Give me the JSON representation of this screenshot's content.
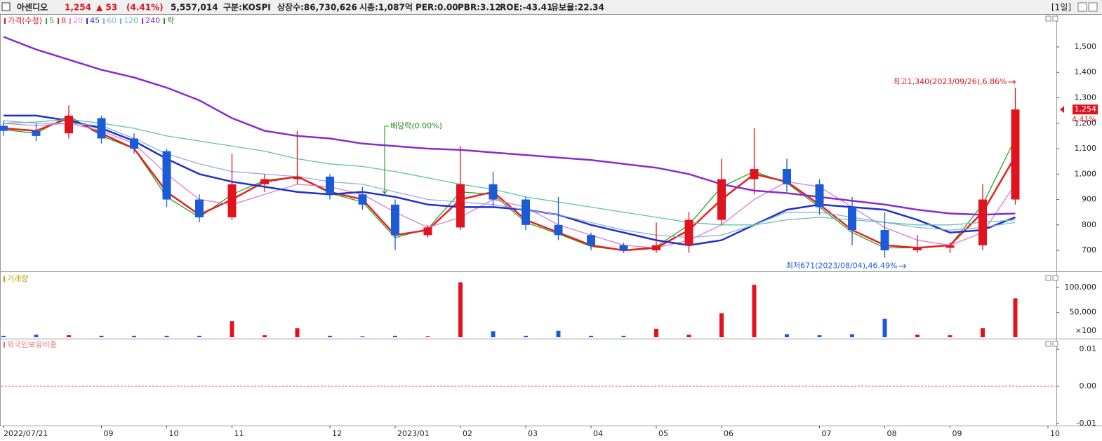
{
  "header": {
    "name": "아센디오",
    "price": "1,254",
    "change": "▲ 53",
    "change_pct": "(4.41%)",
    "volume": "5,557,014",
    "market": "구분:KOSPI",
    "shares": "상장수:86,730,626",
    "cap": "시총:1,087억",
    "per": "PER:0.00",
    "pbr": "PBR:3.12",
    "roe": "ROE:-43.41",
    "reserve": "유보율:22.34",
    "period": "[1일]"
  },
  "chart_data": [
    {
      "type": "candlestick",
      "legend_title": "가격(수정)",
      "legend_ex": "락",
      "categories": [
        "2022/07/21",
        null,
        null,
        "09",
        null,
        "10",
        null,
        "11",
        null,
        null,
        "12",
        null,
        "2023/01",
        null,
        "02",
        null,
        "03",
        null,
        "04",
        null,
        "05",
        null,
        "06",
        null,
        null,
        "07",
        null,
        "08",
        null,
        "09",
        null,
        null,
        "10"
      ],
      "open": [
        1190,
        1170,
        1160,
        1220,
        1140,
        1090,
        900,
        830,
        960,
        980,
        990,
        920,
        880,
        760,
        790,
        960,
        900,
        800,
        760,
        720,
        700,
        720,
        820,
        980,
        1020,
        960,
        870,
        780,
        700,
        710,
        720,
        900,
        null
      ],
      "high": [
        1210,
        1200,
        1270,
        1230,
        1160,
        1100,
        920,
        1080,
        1000,
        1170,
        1000,
        950,
        900,
        800,
        1110,
        1010,
        910,
        910,
        770,
        730,
        810,
        850,
        1060,
        1180,
        1060,
        980,
        910,
        850,
        760,
        730,
        960,
        1340,
        null
      ],
      "low": [
        1150,
        1130,
        1140,
        1120,
        1080,
        870,
        810,
        820,
        930,
        960,
        900,
        860,
        700,
        750,
        780,
        870,
        780,
        740,
        700,
        690,
        690,
        690,
        800,
        920,
        930,
        840,
        720,
        671,
        690,
        690,
        700,
        880,
        null
      ],
      "close": [
        1170,
        1150,
        1230,
        1140,
        1100,
        900,
        830,
        960,
        980,
        990,
        920,
        880,
        760,
        790,
        960,
        900,
        800,
        760,
        720,
        700,
        720,
        820,
        980,
        1020,
        960,
        870,
        780,
        700,
        710,
        720,
        900,
        1254,
        null
      ],
      "up_color": "#e0141e",
      "down_color": "#1c5bd6",
      "series": [
        {
          "name": "5",
          "color": "#22a822",
          "width": 1.3,
          "values": [
            1175,
            1160,
            1230,
            1150,
            1100,
            910,
            830,
            920,
            975,
            990,
            925,
            890,
            750,
            785,
            930,
            920,
            810,
            765,
            715,
            700,
            715,
            800,
            950,
            1010,
            965,
            870,
            770,
            710,
            710,
            720,
            880,
            1140,
            null
          ]
        },
        {
          "name": "8",
          "color": "#e8201e",
          "width": 2.5,
          "values": [
            1180,
            1170,
            1220,
            1160,
            1100,
            930,
            840,
            900,
            970,
            990,
            930,
            900,
            760,
            780,
            900,
            930,
            820,
            770,
            720,
            700,
            710,
            780,
            900,
            1000,
            970,
            880,
            780,
            720,
            710,
            720,
            850,
            1070,
            null
          ]
        },
        {
          "name": "20",
          "color": "#e07ad8",
          "width": 1.3,
          "values": [
            1200,
            1190,
            1200,
            1170,
            1120,
            1000,
            900,
            880,
            920,
            960,
            950,
            920,
            850,
            790,
            830,
            900,
            870,
            800,
            760,
            720,
            710,
            740,
            800,
            900,
            970,
            950,
            870,
            790,
            740,
            720,
            770,
            960,
            null
          ]
        },
        {
          "name": "45",
          "color": "#1f2fd0",
          "width": 2.5,
          "values": [
            1230,
            1230,
            1210,
            1180,
            1130,
            1060,
            1000,
            970,
            950,
            930,
            920,
            930,
            910,
            880,
            870,
            870,
            860,
            840,
            800,
            770,
            740,
            720,
            740,
            800,
            860,
            880,
            870,
            860,
            820,
            770,
            780,
            830,
            null
          ]
        },
        {
          "name": "60",
          "color": "#8fb0e0",
          "width": 1.3,
          "values": [
            1210,
            1200,
            1200,
            1190,
            1140,
            1080,
            1040,
            1010,
            1000,
            990,
            970,
            960,
            930,
            900,
            890,
            880,
            860,
            840,
            810,
            780,
            760,
            750,
            760,
            800,
            850,
            850,
            830,
            810,
            790,
            780,
            790,
            810,
            null
          ]
        },
        {
          "name": "120",
          "color": "#5fc4a8",
          "width": 1.3,
          "values": [
            1200,
            1205,
            1215,
            1200,
            1180,
            1150,
            1130,
            1110,
            1090,
            1060,
            1040,
            1030,
            1010,
            985,
            960,
            940,
            910,
            890,
            870,
            850,
            830,
            810,
            800,
            800,
            820,
            830,
            820,
            810,
            800,
            800,
            810,
            820,
            null
          ]
        },
        {
          "name": "240",
          "color": "#8a2bd0",
          "width": 2.5,
          "values": [
            1540,
            1490,
            1450,
            1410,
            1380,
            1340,
            1290,
            1220,
            1170,
            1150,
            1140,
            1120,
            1110,
            1100,
            1095,
            1085,
            1075,
            1065,
            1055,
            1040,
            1025,
            1000,
            960,
            935,
            925,
            910,
            895,
            880,
            860,
            845,
            840,
            845,
            null
          ]
        }
      ],
      "ex_color": "#1a8a1a",
      "ylim": [
        623,
        1624
      ],
      "yticks": [
        700,
        800,
        900,
        {
          "value": 1000,
          "label": "1,000"
        },
        {
          "value": 1100,
          "label": "1,100"
        },
        {
          "value": 1200,
          "label": "1,200"
        },
        {
          "value": 1300,
          "label": "1,300"
        },
        {
          "value": 1400,
          "label": "1,400"
        },
        {
          "value": 1500,
          "label": "1,500"
        }
      ],
      "high_note": "최고1,340(2023/09/26),6.86%",
      "low_note": "최저671(2023/08/04),46.49%",
      "ex_note": "배당락(0.00%)",
      "last_label": "1,254",
      "last_change": "4.41%"
    },
    {
      "type": "bar",
      "title": "거래량",
      "title_color": "#b8a000",
      "unit": "×100",
      "values": [
        3000,
        5000,
        4000,
        3000,
        3000,
        3000,
        3000,
        32000,
        4000,
        18000,
        3000,
        2000,
        3000,
        2000,
        110000,
        12000,
        3000,
        13000,
        3000,
        3000,
        17000,
        5000,
        48000,
        105000,
        6000,
        4000,
        6000,
        37000,
        5000,
        4000,
        18000,
        78000,
        null
      ],
      "ylim": [
        0,
        125000
      ],
      "yticks": [
        {
          "value": 50000,
          "label": "50,000"
        },
        {
          "value": 100000,
          "label": "100,000"
        }
      ]
    },
    {
      "type": "line",
      "title": "외국인보유비중",
      "title_color": "#e07070",
      "series": [],
      "ylim": [
        -0.0104,
        0.0123
      ],
      "yticks": [
        0.01,
        {
          "value": 0,
          "label": "0.00"
        },
        -0.01
      ],
      "zero_line": true
    }
  ]
}
